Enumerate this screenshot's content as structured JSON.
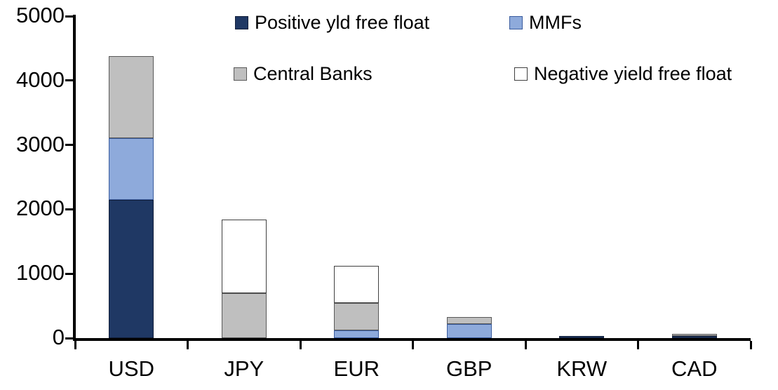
{
  "chart_data": {
    "type": "bar",
    "stacked": true,
    "title": "",
    "xlabel": "",
    "ylabel": "",
    "categories": [
      "USD",
      "JPY",
      "EUR",
      "GBP",
      "KRW",
      "CAD"
    ],
    "series": [
      {
        "name": "Positive yld free float",
        "color": "#1F3864",
        "border_color": "#121F3A",
        "values": [
          2150,
          0,
          0,
          0,
          35,
          30
        ]
      },
      {
        "name": "MMFs",
        "color": "#8EAADB",
        "border_color": "#3A5C9E",
        "values": [
          950,
          0,
          120,
          220,
          0,
          0
        ]
      },
      {
        "name": "Central Banks",
        "color": "#BFBFBF",
        "border_color": "#595959",
        "values": [
          1280,
          700,
          425,
          110,
          0,
          40
        ]
      },
      {
        "name": "Negative yield free float",
        "color": "#FFFFFF",
        "border_color": "#404040",
        "values": [
          0,
          1140,
          575,
          0,
          0,
          0
        ]
      }
    ],
    "totals": [
      4380,
      1840,
      1120,
      330,
      35,
      70
    ],
    "ylim": [
      0,
      5000
    ],
    "yticks": [
      "0",
      "1000",
      "2000",
      "3000",
      "4000",
      "5000"
    ],
    "grid": false,
    "legend_position": "top",
    "axis_color": "#000000",
    "background_color": "#FFFFFF"
  }
}
